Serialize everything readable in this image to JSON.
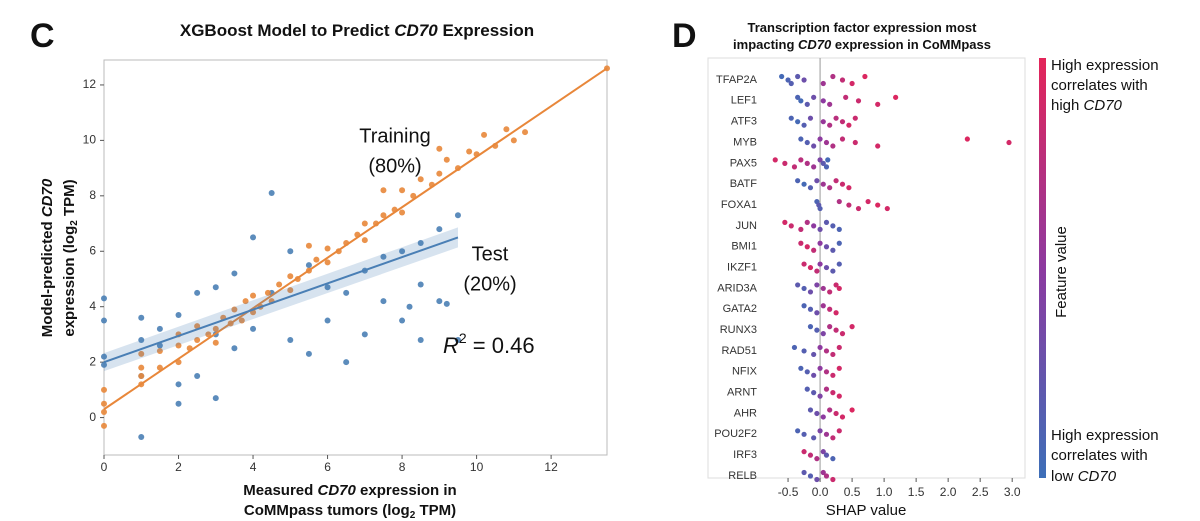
{
  "chart_data": [
    {
      "type": "scatter",
      "panel": "C",
      "title": [
        "XGBoost Model to Predict ",
        "CD70",
        " Expression"
      ],
      "y_label": [
        [
          "Model-predicted ",
          "CD70"
        ],
        [
          "expression (log",
          "2",
          " TPM)"
        ]
      ],
      "x_label": [
        [
          "Measured ",
          "CD70",
          " expression in"
        ],
        [
          "CoMMpass tumors (log",
          "2",
          " TPM)"
        ]
      ],
      "r2_label": [
        "R",
        "2",
        " = 0.46"
      ],
      "xlim": [
        0,
        13.5
      ],
      "ylim": [
        -1.35,
        12.9
      ],
      "xticks": [
        0,
        2,
        4,
        6,
        8,
        10,
        12
      ],
      "yticks": [
        0,
        2,
        4,
        6,
        8,
        10,
        12
      ],
      "series": [
        {
          "name": "Training",
          "share": "(80%)",
          "color": "#e8873a",
          "x": [
            0,
            0,
            0,
            0,
            1,
            1,
            1,
            1,
            1.5,
            1.5,
            2,
            2,
            2,
            2.3,
            2.5,
            2.5,
            2.8,
            3,
            3,
            3.2,
            3.4,
            3.5,
            3.7,
            3.8,
            4,
            4,
            4.2,
            4.4,
            4.5,
            4.7,
            5,
            5,
            5.2,
            5.5,
            5.7,
            6,
            6,
            6.3,
            6.5,
            6.8,
            7,
            7,
            7.3,
            7.5,
            7.8,
            8,
            8,
            8.3,
            8.5,
            8.8,
            9,
            9.2,
            9.5,
            9.8,
            10,
            10.2,
            10.5,
            10.8,
            11,
            11.3,
            13.5,
            9,
            7.5,
            5.5
          ],
          "y": [
            0.2,
            -0.3,
            0.5,
            1.0,
            1.2,
            1.8,
            2.3,
            1.5,
            1.8,
            2.4,
            2.0,
            2.6,
            3.0,
            2.5,
            2.8,
            3.3,
            3.0,
            3.2,
            2.7,
            3.6,
            3.4,
            3.9,
            3.5,
            4.2,
            3.8,
            4.4,
            4.0,
            4.5,
            4.2,
            4.8,
            4.6,
            5.1,
            5.0,
            5.3,
            5.7,
            5.6,
            6.1,
            6.0,
            6.3,
            6.6,
            6.4,
            7.0,
            7.0,
            7.3,
            7.5,
            7.4,
            8.2,
            8.0,
            8.6,
            8.4,
            8.8,
            9.3,
            9.0,
            9.6,
            9.5,
            10.2,
            9.8,
            10.4,
            10.0,
            10.3,
            12.6,
            9.7,
            8.2,
            6.2
          ],
          "fit": {
            "x": [
              0,
              13.5
            ],
            "y": [
              0.3,
              12.6
            ]
          }
        },
        {
          "name": "Test",
          "share": "(20%)",
          "color": "#4a7fb5",
          "x": [
            0,
            0,
            0,
            0,
            1,
            1,
            1,
            1,
            1.5,
            1.5,
            2,
            2,
            2,
            2.5,
            2.5,
            3,
            3,
            3,
            3.5,
            3.5,
            4,
            4,
            4.5,
            4.5,
            5,
            5,
            5.5,
            5.5,
            6,
            6,
            6.5,
            6.5,
            7,
            7,
            7.5,
            7.5,
            8,
            8,
            8.5,
            8.5,
            8.5,
            9,
            9,
            9.5,
            9.5,
            9.2,
            8.2
          ],
          "y": [
            4.3,
            2.2,
            3.5,
            1.9,
            3.6,
            2.8,
            1.5,
            -0.7,
            2.6,
            3.2,
            3.7,
            0.5,
            1.2,
            4.5,
            1.5,
            4.7,
            3.0,
            0.7,
            5.2,
            2.5,
            6.5,
            3.2,
            8.1,
            4.5,
            6.0,
            2.8,
            5.5,
            2.3,
            4.7,
            3.5,
            4.5,
            2.0,
            5.3,
            3.0,
            5.8,
            4.2,
            6.0,
            3.5,
            6.3,
            4.8,
            2.8,
            6.8,
            4.2,
            7.3,
            2.8,
            4.1,
            4.0
          ],
          "fit": {
            "x": [
              0,
              9.5
            ],
            "y": [
              2.0,
              6.5
            ]
          }
        }
      ]
    },
    {
      "type": "beeswarm",
      "panel": "D",
      "title": [
        [
          "Transcription factor expression most"
        ],
        [
          "impacting ",
          "CD70",
          " expression in CoMMpass"
        ]
      ],
      "x_label": "SHAP value",
      "xlim": [
        -1.75,
        3.2
      ],
      "xticks": [
        -0.5,
        {
          "value": 0,
          "label": "0.0"
        },
        0.5,
        {
          "value": 1,
          "label": "1.0"
        },
        1.5,
        {
          "value": 2,
          "label": "2.0"
        },
        2.5,
        {
          "value": 3,
          "label": "3.0"
        }
      ],
      "colormap": [
        "#3d6fb8",
        "#8d3aa0",
        "#e42559"
      ],
      "colorbar": {
        "label": "Feature value",
        "high": [
          [
            "High expression"
          ],
          [
            "correlates with"
          ],
          [
            "high ",
            "CD70"
          ]
        ],
        "low": [
          [
            "High expression"
          ],
          [
            "correlates with"
          ],
          [
            "low ",
            "CD70"
          ]
        ]
      },
      "features": [
        {
          "name": "TFAP2A",
          "shap": [
            -0.6,
            -0.5,
            -0.45,
            -0.35,
            -0.25,
            0.05,
            0.2,
            0.35,
            0.5,
            0.7
          ],
          "feature_value": [
            0.05,
            0.1,
            0.15,
            0.2,
            0.3,
            0.6,
            0.7,
            0.8,
            0.9,
            0.95
          ]
        },
        {
          "name": "LEF1",
          "shap": [
            -0.35,
            -0.3,
            -0.2,
            -0.1,
            0.05,
            0.15,
            0.4,
            0.6,
            0.9,
            1.18
          ],
          "feature_value": [
            0.1,
            0.05,
            0.2,
            0.3,
            0.5,
            0.6,
            0.8,
            0.85,
            0.9,
            0.95
          ]
        },
        {
          "name": "ATF3",
          "shap": [
            -0.45,
            -0.35,
            -0.25,
            -0.15,
            0.05,
            0.15,
            0.25,
            0.35,
            0.45,
            0.55
          ],
          "feature_value": [
            0.1,
            0.05,
            0.15,
            0.3,
            0.55,
            0.7,
            0.75,
            0.8,
            0.9,
            0.85
          ]
        },
        {
          "name": "MYB",
          "shap": [
            -0.3,
            -0.2,
            -0.1,
            0.0,
            0.1,
            0.2,
            0.35,
            0.55,
            0.9,
            2.3,
            2.95
          ],
          "feature_value": [
            0.1,
            0.15,
            0.3,
            0.5,
            0.6,
            0.7,
            0.8,
            0.85,
            0.9,
            0.95,
            0.9
          ]
        },
        {
          "name": "PAX5",
          "shap": [
            -0.7,
            -0.55,
            -0.4,
            -0.3,
            -0.2,
            -0.1,
            0.0,
            0.05,
            0.1,
            0.12
          ],
          "feature_value": [
            0.9,
            0.85,
            0.8,
            0.75,
            0.7,
            0.6,
            0.4,
            0.2,
            0.1,
            0.05
          ]
        },
        {
          "name": "BATF",
          "shap": [
            -0.35,
            -0.25,
            -0.15,
            -0.05,
            0.05,
            0.15,
            0.25,
            0.35,
            0.45
          ],
          "feature_value": [
            0.1,
            0.05,
            0.15,
            0.3,
            0.6,
            0.7,
            0.8,
            0.85,
            0.9
          ]
        },
        {
          "name": "FOXA1",
          "shap": [
            -0.05,
            -0.02,
            0.0,
            0.3,
            0.45,
            0.6,
            0.75,
            0.9,
            1.05
          ],
          "feature_value": [
            0.1,
            0.2,
            0.15,
            0.7,
            0.8,
            0.85,
            0.9,
            0.95,
            0.9
          ]
        },
        {
          "name": "JUN",
          "shap": [
            -0.55,
            -0.45,
            -0.3,
            -0.2,
            -0.1,
            0.0,
            0.1,
            0.2,
            0.3
          ],
          "feature_value": [
            0.9,
            0.85,
            0.8,
            0.7,
            0.5,
            0.3,
            0.2,
            0.15,
            0.1
          ]
        },
        {
          "name": "BMI1",
          "shap": [
            -0.3,
            -0.2,
            -0.1,
            0.0,
            0.1,
            0.2,
            0.3
          ],
          "feature_value": [
            0.85,
            0.9,
            0.8,
            0.5,
            0.3,
            0.2,
            0.1
          ]
        },
        {
          "name": "IKZF1",
          "shap": [
            -0.25,
            -0.15,
            -0.05,
            0.0,
            0.1,
            0.2,
            0.3
          ],
          "feature_value": [
            0.85,
            0.9,
            0.8,
            0.5,
            0.3,
            0.2,
            0.15
          ]
        },
        {
          "name": "ARID3A",
          "shap": [
            -0.35,
            -0.25,
            -0.15,
            -0.05,
            0.05,
            0.15,
            0.25,
            0.3
          ],
          "feature_value": [
            0.2,
            0.15,
            0.3,
            0.4,
            0.6,
            0.8,
            0.85,
            0.9
          ]
        },
        {
          "name": "GATA2",
          "shap": [
            -0.25,
            -0.15,
            -0.05,
            0.05,
            0.15,
            0.25
          ],
          "feature_value": [
            0.1,
            0.15,
            0.3,
            0.6,
            0.8,
            0.9
          ]
        },
        {
          "name": "RUNX3",
          "shap": [
            -0.15,
            -0.05,
            0.05,
            0.15,
            0.25,
            0.35,
            0.5
          ],
          "feature_value": [
            0.1,
            0.15,
            0.4,
            0.7,
            0.8,
            0.85,
            0.9
          ]
        },
        {
          "name": "RAD51",
          "shap": [
            -0.4,
            -0.25,
            -0.1,
            0.0,
            0.1,
            0.2,
            0.3
          ],
          "feature_value": [
            0.1,
            0.15,
            0.25,
            0.5,
            0.7,
            0.8,
            0.85
          ]
        },
        {
          "name": "NFIX",
          "shap": [
            -0.3,
            -0.2,
            -0.1,
            0.0,
            0.1,
            0.2,
            0.3
          ],
          "feature_value": [
            0.1,
            0.15,
            0.3,
            0.5,
            0.7,
            0.85,
            0.9
          ]
        },
        {
          "name": "ARNT",
          "shap": [
            -0.2,
            -0.1,
            0.0,
            0.1,
            0.2,
            0.3
          ],
          "feature_value": [
            0.15,
            0.2,
            0.4,
            0.7,
            0.85,
            0.9
          ]
        },
        {
          "name": "AHR",
          "shap": [
            -0.15,
            -0.05,
            0.05,
            0.15,
            0.25,
            0.35,
            0.5
          ],
          "feature_value": [
            0.2,
            0.3,
            0.5,
            0.7,
            0.85,
            0.9,
            0.95
          ]
        },
        {
          "name": "POU2F2",
          "shap": [
            -0.35,
            -0.25,
            -0.1,
            0.0,
            0.1,
            0.2,
            0.3
          ],
          "feature_value": [
            0.1,
            0.15,
            0.2,
            0.4,
            0.6,
            0.8,
            0.85
          ]
        },
        {
          "name": "IRF3",
          "shap": [
            -0.25,
            -0.15,
            -0.05,
            0.05,
            0.1,
            0.2
          ],
          "feature_value": [
            0.85,
            0.8,
            0.7,
            0.4,
            0.2,
            0.1
          ]
        },
        {
          "name": "RELB",
          "shap": [
            -0.25,
            -0.15,
            -0.05,
            0.05,
            0.1,
            0.2
          ],
          "feature_value": [
            0.2,
            0.15,
            0.3,
            0.6,
            0.7,
            0.85
          ]
        }
      ]
    }
  ]
}
